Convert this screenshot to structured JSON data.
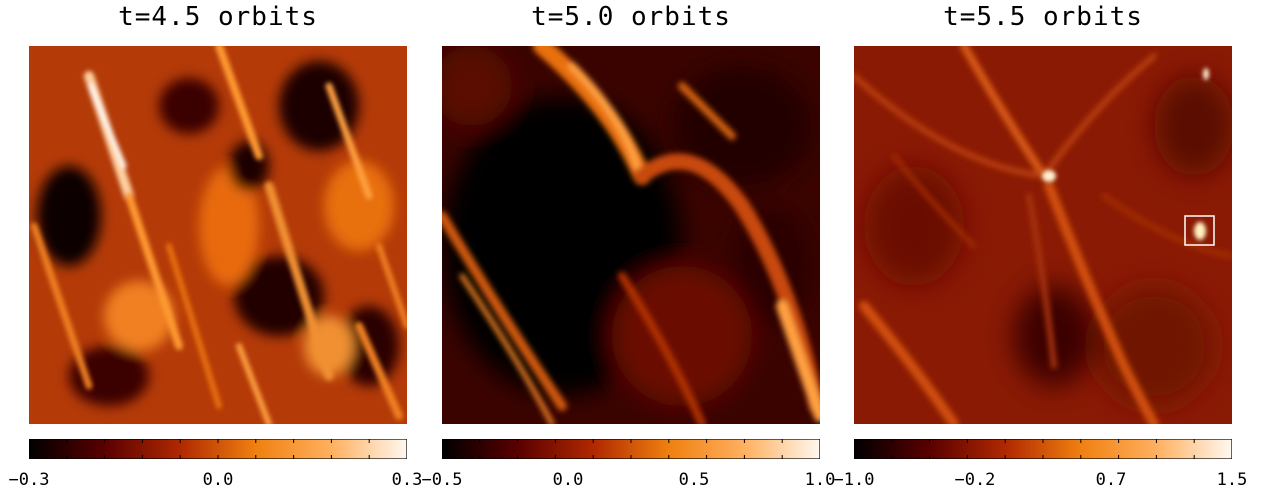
{
  "colormap": {
    "name": "heat",
    "stops": [
      "#000000",
      "#5a0000",
      "#b02800",
      "#f08010",
      "#ffb060",
      "#fff8f0"
    ]
  },
  "chart_data": [
    {
      "type": "heatmap",
      "title": "t=4.5 orbits",
      "time_orbits": 4.5,
      "colorbar": {
        "range": [
          -0.3,
          0.3
        ],
        "ticks": [
          "−0.3",
          "0.0",
          "0.3"
        ],
        "tick_values": [
          -0.3,
          0.0,
          0.3
        ]
      }
    },
    {
      "type": "heatmap",
      "title": "t=5.0 orbits",
      "time_orbits": 5.0,
      "colorbar": {
        "range": [
          -0.5,
          1.0
        ],
        "ticks": [
          "−0.5",
          "0.0",
          "0.5",
          "1.0"
        ],
        "tick_values": [
          -0.5,
          0.0,
          0.5,
          1.0
        ]
      }
    },
    {
      "type": "heatmap",
      "title": "t=5.5 orbits",
      "time_orbits": 5.5,
      "colorbar": {
        "range": [
          -1.0,
          1.5
        ],
        "ticks": [
          "−1.0",
          "−0.2",
          "0.7",
          "1.5"
        ],
        "tick_values": [
          -1.0,
          -0.2,
          0.7,
          1.5
        ]
      }
    }
  ]
}
